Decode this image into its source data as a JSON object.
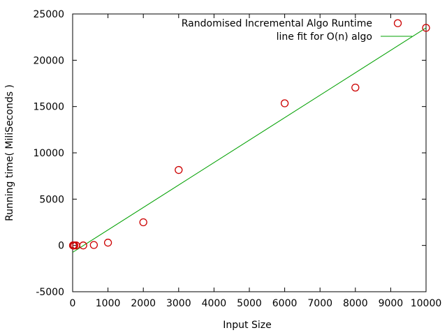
{
  "chart_data": {
    "type": "scatter",
    "xlabel": "Input Size",
    "ylabel": "Running time( MiliSeconds )",
    "xlim": [
      0,
      10000
    ],
    "ylim": [
      -5000,
      25000
    ],
    "xticks": [
      0,
      1000,
      2000,
      3000,
      4000,
      5000,
      6000,
      7000,
      8000,
      9000,
      10000
    ],
    "yticks": [
      -5000,
      0,
      5000,
      10000,
      15000,
      20000,
      25000
    ],
    "grid": false,
    "legend_position": "top-right",
    "series": [
      {
        "name": "Randomised Incremental Algo Runtime",
        "kind": "points",
        "marker": "circle",
        "color": "#cc0000",
        "x": [
          10,
          20,
          50,
          100,
          300,
          600,
          1000,
          2000,
          3000,
          6000,
          8000,
          10000
        ],
        "y": [
          0,
          0,
          0,
          0,
          0,
          50,
          300,
          2500,
          8150,
          15350,
          17050,
          23500
        ]
      },
      {
        "name": "line fit for O(n) algo",
        "kind": "line",
        "color": "#00a000",
        "x": [
          0,
          10000
        ],
        "y": [
          -750,
          23500
        ]
      }
    ],
    "legend_marker_point": {
      "x": 9200,
      "y": 24000
    }
  }
}
